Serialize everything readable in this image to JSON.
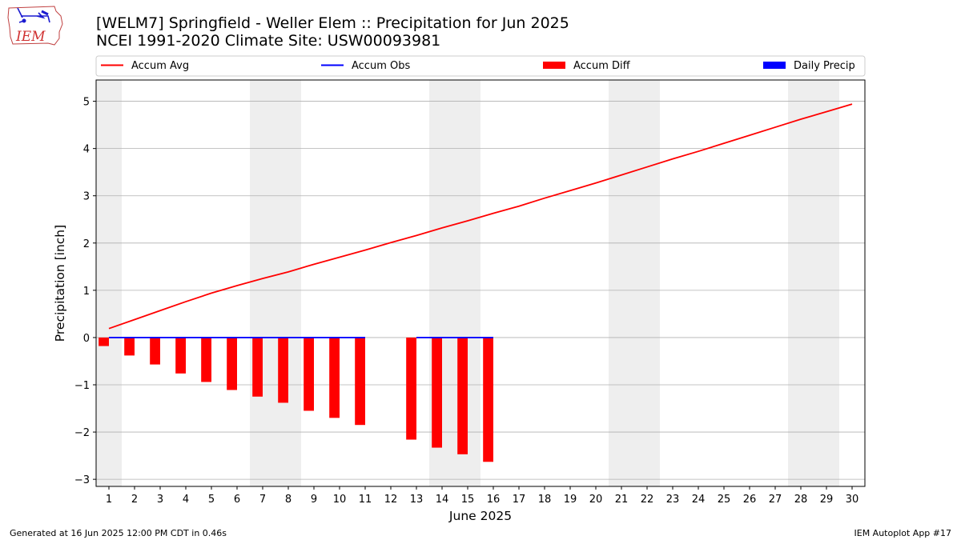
{
  "header": {
    "title_line1": "[WELM7] Springfield - Weller Elem :: Precipitation for Jun 2025",
    "title_line2": "NCEI 1991-2020 Climate Site: USW00093981",
    "logo_text": "IEM"
  },
  "footer": {
    "left": "Generated at 16 Jun 2025 12:00 PM CDT in 0.46s",
    "right": "IEM Autoplot App #17"
  },
  "colors": {
    "accum_avg": "#ff0000",
    "accum_obs": "#0000ff",
    "accum_diff": "#ff0000",
    "daily_precip": "#0000ff",
    "weekend_shade": "#eeeeee",
    "grid": "#b0b0b0"
  },
  "chart_data": {
    "type": "line",
    "xlabel": "June 2025",
    "ylabel": "Precipitation [inch]",
    "xlim": [
      0.5,
      30.5
    ],
    "ylim": [
      -3.15,
      5.45
    ],
    "x_ticks": [
      1,
      2,
      3,
      4,
      5,
      6,
      7,
      8,
      9,
      10,
      11,
      12,
      13,
      14,
      15,
      16,
      17,
      18,
      19,
      20,
      21,
      22,
      23,
      24,
      25,
      26,
      27,
      28,
      29,
      30
    ],
    "y_ticks": [
      -3,
      -2,
      -1,
      0,
      1,
      2,
      3,
      4,
      5
    ],
    "y_tick_labels": [
      "−3",
      "−2",
      "−1",
      "0",
      "1",
      "2",
      "3",
      "4",
      "5"
    ],
    "grid": "horizontal",
    "legend_position": "top, above plot",
    "weekend_shading": [
      [
        0.5,
        1.5
      ],
      [
        6.5,
        8.5
      ],
      [
        13.5,
        15.5
      ],
      [
        20.5,
        22.5
      ],
      [
        27.5,
        29.5
      ]
    ],
    "legend": [
      "Accum Avg",
      "Accum Obs",
      "Accum Diff",
      "Daily Precip"
    ],
    "series": [
      {
        "name": "Accum Avg",
        "kind": "line",
        "x": [
          1,
          2,
          3,
          4,
          5,
          6,
          7,
          8,
          9,
          10,
          11,
          12,
          13,
          14,
          15,
          16,
          17,
          18,
          19,
          20,
          21,
          22,
          23,
          24,
          25,
          26,
          27,
          28,
          29,
          30
        ],
        "values": [
          0.19,
          0.38,
          0.57,
          0.76,
          0.94,
          1.1,
          1.25,
          1.39,
          1.55,
          1.7,
          1.85,
          2.01,
          2.16,
          2.32,
          2.47,
          2.63,
          2.78,
          2.95,
          3.11,
          3.27,
          3.44,
          3.61,
          3.78,
          3.94,
          4.11,
          4.28,
          4.45,
          4.62,
          4.78,
          4.94
        ]
      },
      {
        "name": "Accum Obs",
        "kind": "line",
        "x": [
          1,
          2,
          3,
          4,
          5,
          6,
          7,
          8,
          9,
          10,
          11,
          13,
          14,
          15,
          16
        ],
        "values": [
          0,
          0,
          0,
          0,
          0,
          0,
          0,
          0,
          0,
          0,
          0,
          0,
          0,
          0,
          0
        ]
      },
      {
        "name": "Accum Diff",
        "kind": "bar",
        "x": [
          1,
          2,
          3,
          4,
          5,
          6,
          7,
          8,
          9,
          10,
          11,
          13,
          14,
          15,
          16
        ],
        "values": [
          -0.18,
          -0.38,
          -0.57,
          -0.76,
          -0.94,
          -1.11,
          -1.25,
          -1.38,
          -1.55,
          -1.7,
          -1.85,
          -2.16,
          -2.33,
          -2.47,
          -2.63
        ]
      },
      {
        "name": "Daily Precip",
        "kind": "bar",
        "x": [
          1,
          2,
          3,
          4,
          5,
          6,
          7,
          8,
          9,
          10,
          11,
          13,
          14,
          15,
          16
        ],
        "values": [
          0,
          0,
          0,
          0,
          0,
          0,
          0,
          0,
          0,
          0,
          0,
          0,
          0,
          0,
          0
        ]
      }
    ]
  }
}
